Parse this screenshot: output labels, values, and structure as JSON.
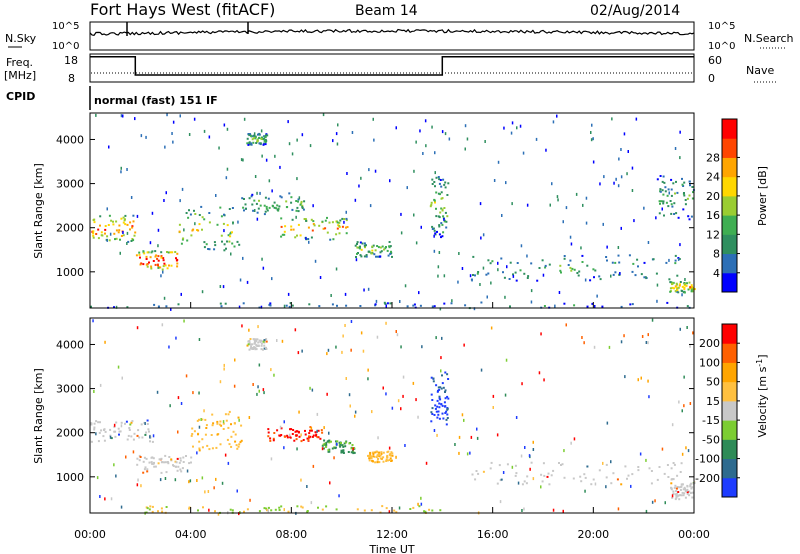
{
  "header": {
    "station": "Fort Hays West (fitACF)",
    "beam": "Beam 14",
    "date": "02/Aug/2014"
  },
  "aux_panel": {
    "nsky_label": "N.Sky",
    "nsky_ticks": [
      "10^5",
      "10^0"
    ],
    "nsearch_label": "N.Search",
    "nsearch_ticks": [
      "10^5",
      "10^0"
    ],
    "freq_label": "Freq.",
    "freq_unit": "[MHz]",
    "freq_ticks": [
      "18",
      "8"
    ],
    "nave_label": "Nave",
    "nave_ticks": [
      "60",
      "0"
    ],
    "cpid_label": "CPID",
    "cpid_text": "normal (fast) 151 IF",
    "freq_steps": [
      {
        "from": 0.0,
        "to": 1.8,
        "level": 0.9
      },
      {
        "from": 1.8,
        "to": 14.0,
        "level": 0.25
      },
      {
        "from": 14.0,
        "to": 24.0,
        "level": 0.9
      }
    ]
  },
  "chart_data": [
    {
      "type": "heatmap",
      "name": "power",
      "ylabel": "Slant Range [km]",
      "xlim": [
        0,
        24
      ],
      "ylim": [
        180,
        4600
      ],
      "yticks": [
        1000,
        2000,
        3000,
        4000
      ],
      "colorbar": {
        "label": "Power [dB]",
        "ticks": [
          "4",
          "8",
          "12",
          "16",
          "20",
          "24",
          "28"
        ],
        "colors": [
          "#0000ff",
          "#2c6fb6",
          "#2f8f5f",
          "#3fae52",
          "#9acd32",
          "#ffd700",
          "#ffa500",
          "#ff4500",
          "#ff0000"
        ]
      },
      "echo_regions": [
        {
          "t0": 0.0,
          "t1": 1.8,
          "r0": 1700,
          "r1": 2300,
          "intensity": 0.75
        },
        {
          "t0": 1.8,
          "t1": 3.5,
          "r0": 1050,
          "r1": 1500,
          "intensity": 0.85
        },
        {
          "t0": 3.5,
          "t1": 6.0,
          "r0": 1500,
          "r1": 2500,
          "intensity": 0.5
        },
        {
          "t0": 6.0,
          "t1": 8.5,
          "r0": 2300,
          "r1": 2800,
          "intensity": 0.35
        },
        {
          "t0": 7.5,
          "t1": 10.2,
          "r0": 1750,
          "r1": 2250,
          "intensity": 0.65
        },
        {
          "t0": 10.5,
          "t1": 12.0,
          "r0": 1350,
          "r1": 1700,
          "intensity": 0.4
        },
        {
          "t0": 6.2,
          "t1": 7.0,
          "r0": 3900,
          "r1": 4150,
          "intensity": 0.4
        },
        {
          "t0": 13.5,
          "t1": 14.2,
          "r0": 1800,
          "r1": 3200,
          "intensity": 0.4
        },
        {
          "t0": 15.0,
          "t1": 23.5,
          "r0": 800,
          "r1": 1400,
          "intensity": 0.3
        },
        {
          "t0": 22.5,
          "t1": 24.0,
          "r0": 2200,
          "r1": 3200,
          "intensity": 0.3
        },
        {
          "t0": 23.0,
          "t1": 24.0,
          "r0": 550,
          "r1": 800,
          "intensity": 0.6
        },
        {
          "t0": 0.0,
          "t1": 24.0,
          "r0": 200,
          "r1": 330,
          "intensity": 0.2
        }
      ]
    },
    {
      "type": "heatmap",
      "name": "velocity",
      "ylabel": "Slant Range [km]",
      "xlabel": "Time UT",
      "xlim": [
        0,
        24
      ],
      "ylim": [
        180,
        4600
      ],
      "yticks": [
        1000,
        2000,
        3000,
        4000
      ],
      "xticks": [
        "00:00",
        "04:00",
        "08:00",
        "12:00",
        "16:00",
        "20:00",
        "00:00"
      ],
      "colorbar": {
        "label": "Velocity [m s",
        "label_sup": "-1",
        "label_end": "]",
        "ticks": [
          "200",
          "100",
          "50",
          "15",
          "-15",
          "-50",
          "-100",
          "-200"
        ],
        "colors": [
          "#1e3cff",
          "#2e6b8f",
          "#2e8b57",
          "#7ccd32",
          "#c8c8c8",
          "#ffc040",
          "#ffa500",
          "#ff6000",
          "#ff0000"
        ]
      },
      "echo_regions": [
        {
          "t0": 0.0,
          "t1": 2.5,
          "r0": 1800,
          "r1": 2300,
          "kind": "ground"
        },
        {
          "t0": 1.8,
          "t1": 4.0,
          "r0": 1100,
          "r1": 1500,
          "kind": "ground"
        },
        {
          "t0": 4.0,
          "t1": 6.0,
          "r0": 1600,
          "r1": 2500,
          "kind": "orange"
        },
        {
          "t0": 7.0,
          "t1": 9.2,
          "r0": 1800,
          "r1": 2150,
          "kind": "red"
        },
        {
          "t0": 9.2,
          "t1": 10.5,
          "r0": 1550,
          "r1": 1850,
          "kind": "green"
        },
        {
          "t0": 11.0,
          "t1": 12.0,
          "r0": 1350,
          "r1": 1600,
          "kind": "orange"
        },
        {
          "t0": 6.2,
          "t1": 7.0,
          "r0": 3900,
          "r1": 4150,
          "kind": "ground"
        },
        {
          "t0": 13.5,
          "t1": 14.2,
          "r0": 2200,
          "r1": 3400,
          "kind": "blue"
        },
        {
          "t0": 15.0,
          "t1": 23.5,
          "r0": 850,
          "r1": 1350,
          "kind": "ground"
        },
        {
          "t0": 2.0,
          "t1": 14.0,
          "r0": 200,
          "r1": 360,
          "kind": "mixed"
        },
        {
          "t0": 23.0,
          "t1": 24.0,
          "r0": 500,
          "r1": 900,
          "kind": "ground"
        }
      ]
    }
  ]
}
